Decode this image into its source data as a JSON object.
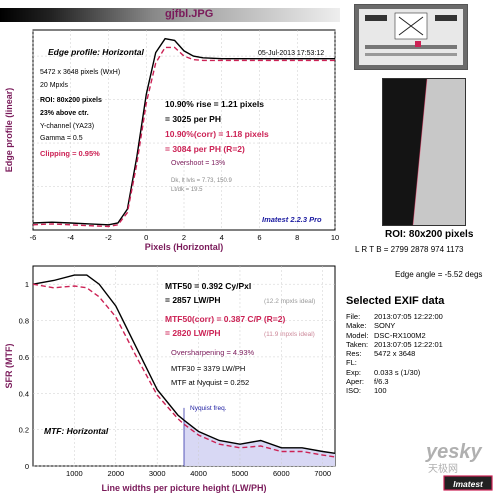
{
  "header": {
    "filename": "gjfbl.JPG"
  },
  "edge_panel": {
    "title": "Edge profile: Horizontal",
    "date": "05-Jul-2013 17:53:12",
    "info_lines": [
      "5472 x 3648 pixels (WxH)",
      "20 Mpxls",
      "ROI: 80x200 pixels",
      "23% above ctr.",
      "Y-channel  (YA23)",
      "Gamma = 0.5"
    ],
    "clipping": "Clipping =  0.95%",
    "rise_lines": [
      "10.90% rise = 1.21 pixels",
      "= 3025 per PH"
    ],
    "rise_corr_lines": [
      "10.90%(corr) = 1.18 pixels",
      "= 3084 per PH  (R=2)"
    ],
    "overshoot": "Overshoot = 13%",
    "dk_lines": [
      "Dk, lt lvls = 7.73, 150.9",
      "Lt/dk = 19.5"
    ],
    "brand": "Imatest 2.2.3 Pro"
  },
  "mtf_panel": {
    "title": "MTF: Horizontal",
    "mtf50": "MTF50 = 0.392 Cy/Pxl",
    "mtf50_lw": "= 2857 LW/PH",
    "mtf50_ideal": "(12.2 mpxls ideal)",
    "mtf50c": "MTF50(corr) = 0.387 C/P  (R=2)",
    "mtf50c_lw": "= 2820 LW/PH",
    "mtf50c_ideal": "(11.9 mpxls ideal)",
    "oversharp": "Oversharpening = 4.93%",
    "mtf30": "MTF30 = 3379 LW/PH",
    "nyq_val": "MTF at Nyquist = 0.252",
    "nyq_label": "Nyquist freq."
  },
  "roi": {
    "label": "ROI: 80x200 pixels",
    "coords": "L R T B = 2799 2878  974 1173",
    "edge_angle": "Edge angle = -5.52 degs"
  },
  "exif": {
    "heading": "Selected EXIF data",
    "rows": [
      {
        "k": "File:",
        "v": "2013:07:05 12:22:00"
      },
      {
        "k": "Make:",
        "v": "SONY"
      },
      {
        "k": "Model:",
        "v": "DSC-RX100M2"
      },
      {
        "k": "Taken:",
        "v": "2013:07:05 12:22:01"
      },
      {
        "k": "Res:",
        "v": "5472 x 3648"
      },
      {
        "k": "FL:",
        "v": ""
      },
      {
        "k": "Exp:",
        "v": "0.033 s  (1/30)"
      },
      {
        "k": "Aper:",
        "v": "f/6.3"
      },
      {
        "k": "ISO:",
        "v": "100"
      }
    ]
  },
  "watermark": {
    "site": "yesky",
    "site_cn": "天极网",
    "brand": "Imatest"
  },
  "colors": {
    "raw": "#000000",
    "corr": "#cc2255",
    "title": "#7a1a5a",
    "nyquist_fill": "#d8d8f4"
  },
  "chart_data": [
    {
      "type": "line",
      "title": "Edge profile: Horizontal",
      "xlabel": "Pixels (Horizontal)",
      "ylabel": "Edge profile (linear)",
      "xlim": [
        -6,
        10
      ],
      "ylim": [
        0,
        1.15
      ],
      "xticks": [
        -6,
        -4,
        -2,
        0,
        2,
        4,
        6,
        8,
        10
      ],
      "grid": true,
      "series": [
        {
          "x": [
            -6,
            -5,
            -4,
            -3,
            -2,
            -1.5,
            -1,
            -0.5,
            0,
            0.5,
            1,
            1.5,
            2,
            2.5,
            3,
            4,
            5,
            6,
            7,
            8,
            9,
            10
          ],
          "y": [
            0.04,
            0.045,
            0.04,
            0.035,
            0.03,
            0.04,
            0.12,
            0.42,
            0.78,
            1.02,
            1.1,
            1.09,
            1.03,
            1.0,
            0.99,
            0.985,
            0.985,
            0.985,
            0.985,
            0.985,
            0.985,
            0.985
          ]
        },
        {
          "x": [
            -6,
            -5,
            -4,
            -3,
            -2,
            -1.5,
            -1,
            -0.5,
            0,
            0.5,
            1,
            1.5,
            2,
            2.5,
            3,
            4,
            5,
            6,
            7,
            8,
            9,
            10
          ],
          "y": [
            0.03,
            0.035,
            0.03,
            0.025,
            0.02,
            0.03,
            0.1,
            0.38,
            0.73,
            0.96,
            1.05,
            1.05,
            1.0,
            0.98,
            0.975,
            0.975,
            0.975,
            0.975,
            0.975,
            0.975,
            0.975,
            0.975
          ]
        }
      ]
    },
    {
      "type": "line",
      "title": "MTF: Horizontal",
      "xlabel": "Line widths per picture height (LW/PH)",
      "ylabel": "SFR (MTF)",
      "xlim": [
        0,
        7296
      ],
      "ylim": [
        0,
        1.1
      ],
      "xticks": [
        1000,
        2000,
        3000,
        4000,
        5000,
        6000,
        7000
      ],
      "yticks": [
        0,
        0.2,
        0.4,
        0.6,
        0.8,
        1
      ],
      "nyquist_x": 3648,
      "grid": true,
      "series": [
        {
          "x": [
            0,
            500,
            1000,
            1300,
            1600,
            2000,
            2500,
            3000,
            3500,
            3648,
            4000,
            4500,
            5000,
            5500,
            6000,
            6500,
            7000,
            7296
          ],
          "y": [
            1.0,
            1.02,
            1.05,
            1.05,
            1.0,
            0.88,
            0.65,
            0.42,
            0.28,
            0.252,
            0.19,
            0.14,
            0.12,
            0.14,
            0.1,
            0.1,
            0.08,
            0.07
          ]
        },
        {
          "x": [
            0,
            500,
            1000,
            1300,
            1600,
            2000,
            2500,
            3000,
            3500,
            3648,
            4000,
            4500,
            5000,
            5500,
            6000,
            6500,
            7000,
            7296
          ],
          "y": [
            1.0,
            0.98,
            0.99,
            0.98,
            0.93,
            0.82,
            0.6,
            0.39,
            0.26,
            0.23,
            0.17,
            0.12,
            0.1,
            0.11,
            0.08,
            0.08,
            0.06,
            0.05
          ]
        }
      ]
    }
  ]
}
